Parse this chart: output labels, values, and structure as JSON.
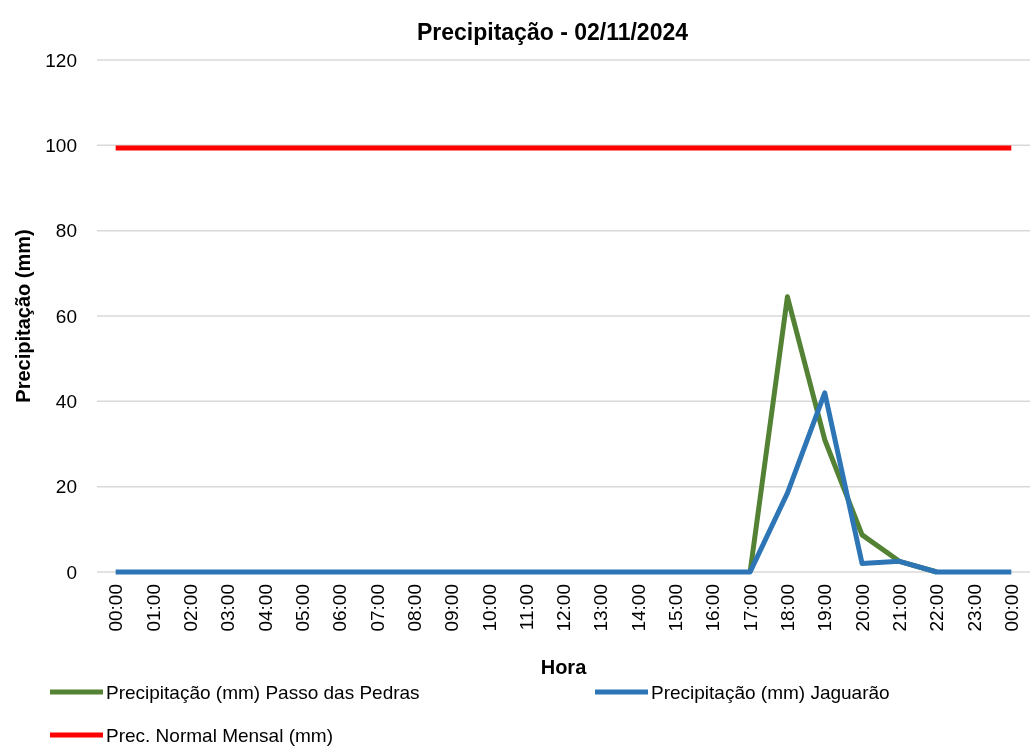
{
  "chart_data": {
    "type": "line",
    "title": "Precipitação - 02/11/2024",
    "xlabel": "Hora",
    "ylabel": "Precipitação (mm)",
    "categories": [
      "00:00",
      "01:00",
      "02:00",
      "03:00",
      "04:00",
      "05:00",
      "06:00",
      "07:00",
      "08:00",
      "09:00",
      "10:00",
      "11:00",
      "12:00",
      "13:00",
      "14:00",
      "15:00",
      "16:00",
      "17:00",
      "18:00",
      "19:00",
      "20:00",
      "21:00",
      "22:00",
      "23:00",
      "00:00"
    ],
    "series": [
      {
        "name": "Precipitação (mm) Passo das Pedras",
        "color": "#548235",
        "values": [
          null,
          null,
          null,
          null,
          null,
          null,
          null,
          null,
          null,
          null,
          null,
          null,
          null,
          null,
          null,
          null,
          null,
          0,
          64.5,
          31,
          8.7,
          2.5,
          0,
          null,
          null
        ]
      },
      {
        "name": "Precipitação (mm) Jaguarão",
        "color": "#2e75b6",
        "values": [
          0,
          0,
          0,
          0,
          0,
          0,
          0,
          0,
          0,
          0,
          0,
          0,
          0,
          0,
          0,
          0,
          0,
          0,
          18.5,
          42,
          2,
          2.5,
          0,
          0,
          0
        ]
      },
      {
        "name": "Prec. Normal Mensal (mm)",
        "color": "#ff0000",
        "values": [
          99.4,
          99.4,
          99.4,
          99.4,
          99.4,
          99.4,
          99.4,
          99.4,
          99.4,
          99.4,
          99.4,
          99.4,
          99.4,
          99.4,
          99.4,
          99.4,
          99.4,
          99.4,
          99.4,
          99.4,
          99.4,
          99.4,
          99.4,
          99.4,
          99.4
        ]
      }
    ],
    "ylim": [
      0,
      120
    ],
    "yticks": [
      0,
      20,
      40,
      60,
      80,
      100,
      120
    ],
    "grid": "y",
    "legend": "bottom",
    "marker": "none",
    "line_style": "solid"
  }
}
